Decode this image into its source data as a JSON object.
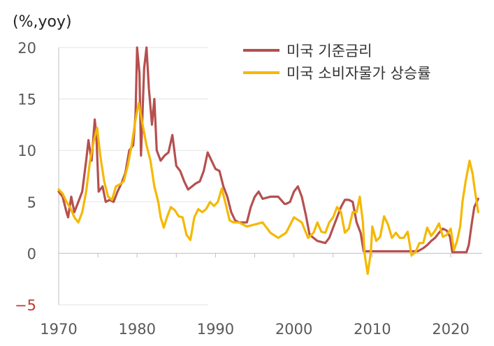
{
  "chart_data": {
    "type": "line",
    "unit_label": "(%,yoy)",
    "xlim": [
      1970,
      2024
    ],
    "ylim": [
      -5,
      20
    ],
    "y_ticks": [
      20,
      15,
      10,
      5,
      0,
      -5
    ],
    "y_tick_labels": [
      "20",
      "15",
      "10",
      "5",
      "0",
      "−5"
    ],
    "x_ticks": [
      1970,
      1980,
      1990,
      2000,
      2010,
      2020
    ],
    "x_tick_labels": [
      "1970",
      "1980",
      "1990",
      "2000",
      "2010",
      "2020"
    ],
    "grid": true,
    "legend": "top-right",
    "series": [
      {
        "name": "미국 기준금리",
        "color": "#b5504f",
        "points": [
          [
            1970.0,
            6.0
          ],
          [
            1970.5,
            5.5
          ],
          [
            1971.0,
            4.0
          ],
          [
            1971.2,
            3.5
          ],
          [
            1971.6,
            5.5
          ],
          [
            1972.0,
            4.0
          ],
          [
            1972.5,
            5.0
          ],
          [
            1973.0,
            6.0
          ],
          [
            1973.5,
            9.0
          ],
          [
            1973.8,
            11.0
          ],
          [
            1974.2,
            9.0
          ],
          [
            1974.6,
            13.0
          ],
          [
            1974.8,
            11.5
          ],
          [
            1975.1,
            6.0
          ],
          [
            1975.6,
            6.5
          ],
          [
            1976.0,
            5.0
          ],
          [
            1976.5,
            5.2
          ],
          [
            1977.0,
            5.0
          ],
          [
            1977.5,
            6.0
          ],
          [
            1978.0,
            6.8
          ],
          [
            1978.5,
            7.8
          ],
          [
            1979.0,
            10.0
          ],
          [
            1979.5,
            10.5
          ],
          [
            1979.8,
            13.5
          ],
          [
            1980.0,
            20.0
          ],
          [
            1980.3,
            17.5
          ],
          [
            1980.5,
            9.5
          ],
          [
            1980.9,
            18.0
          ],
          [
            1981.2,
            20.0
          ],
          [
            1981.5,
            16.0
          ],
          [
            1981.9,
            12.5
          ],
          [
            1982.2,
            15.0
          ],
          [
            1982.5,
            10.0
          ],
          [
            1983.0,
            9.0
          ],
          [
            1983.5,
            9.5
          ],
          [
            1984.0,
            9.8
          ],
          [
            1984.5,
            11.5
          ],
          [
            1985.0,
            8.5
          ],
          [
            1985.5,
            8.0
          ],
          [
            1986.0,
            7.0
          ],
          [
            1986.5,
            6.2
          ],
          [
            1987.0,
            6.5
          ],
          [
            1987.5,
            6.8
          ],
          [
            1988.0,
            7.0
          ],
          [
            1988.5,
            8.0
          ],
          [
            1989.0,
            9.8
          ],
          [
            1989.5,
            9.0
          ],
          [
            1990.0,
            8.2
          ],
          [
            1990.5,
            8.0
          ],
          [
            1991.0,
            6.5
          ],
          [
            1991.5,
            5.5
          ],
          [
            1992.0,
            4.0
          ],
          [
            1992.5,
            3.2
          ],
          [
            1993.0,
            3.0
          ],
          [
            1994.0,
            3.0
          ],
          [
            1994.5,
            4.5
          ],
          [
            1995.0,
            5.5
          ],
          [
            1995.5,
            6.0
          ],
          [
            1996.0,
            5.3
          ],
          [
            1997.0,
            5.5
          ],
          [
            1998.0,
            5.5
          ],
          [
            1998.8,
            4.8
          ],
          [
            1999.0,
            4.8
          ],
          [
            1999.5,
            5.0
          ],
          [
            2000.0,
            6.0
          ],
          [
            2000.5,
            6.5
          ],
          [
            2001.0,
            5.5
          ],
          [
            2001.5,
            3.8
          ],
          [
            2002.0,
            1.8
          ],
          [
            2003.0,
            1.2
          ],
          [
            2004.0,
            1.0
          ],
          [
            2004.5,
            1.5
          ],
          [
            2005.0,
            2.5
          ],
          [
            2005.5,
            3.5
          ],
          [
            2006.0,
            4.5
          ],
          [
            2006.5,
            5.2
          ],
          [
            2007.0,
            5.2
          ],
          [
            2007.5,
            5.0
          ],
          [
            2008.0,
            3.0
          ],
          [
            2008.5,
            2.0
          ],
          [
            2008.9,
            0.2
          ],
          [
            2015.8,
            0.2
          ],
          [
            2016.5,
            0.5
          ],
          [
            2017.0,
            0.8
          ],
          [
            2017.5,
            1.2
          ],
          [
            2018.0,
            1.5
          ],
          [
            2018.5,
            2.0
          ],
          [
            2019.0,
            2.4
          ],
          [
            2019.5,
            2.2
          ],
          [
            2019.9,
            1.6
          ],
          [
            2020.2,
            0.1
          ],
          [
            2022.0,
            0.1
          ],
          [
            2022.3,
            0.8
          ],
          [
            2022.7,
            3.0
          ],
          [
            2023.0,
            4.5
          ],
          [
            2023.5,
            5.3
          ]
        ]
      },
      {
        "name": "미국 소비자물가 상승률",
        "color": "#f5b800",
        "points": [
          [
            1970.0,
            6.2
          ],
          [
            1970.5,
            5.8
          ],
          [
            1971.0,
            5.0
          ],
          [
            1971.5,
            4.4
          ],
          [
            1972.0,
            3.5
          ],
          [
            1972.5,
            3.0
          ],
          [
            1973.0,
            4.0
          ],
          [
            1973.5,
            6.0
          ],
          [
            1974.0,
            9.0
          ],
          [
            1974.5,
            11.0
          ],
          [
            1974.9,
            12.2
          ],
          [
            1975.3,
            9.5
          ],
          [
            1975.8,
            7.0
          ],
          [
            1976.3,
            5.5
          ],
          [
            1976.8,
            5.2
          ],
          [
            1977.3,
            6.5
          ],
          [
            1977.8,
            6.7
          ],
          [
            1978.3,
            7.0
          ],
          [
            1978.8,
            8.5
          ],
          [
            1979.3,
            10.5
          ],
          [
            1979.8,
            13.0
          ],
          [
            1980.2,
            14.6
          ],
          [
            1980.7,
            12.5
          ],
          [
            1981.2,
            10.5
          ],
          [
            1981.7,
            9.0
          ],
          [
            1982.2,
            6.5
          ],
          [
            1982.7,
            5.0
          ],
          [
            1983.0,
            3.5
          ],
          [
            1983.4,
            2.5
          ],
          [
            1983.8,
            3.5
          ],
          [
            1984.3,
            4.5
          ],
          [
            1984.8,
            4.2
          ],
          [
            1985.3,
            3.6
          ],
          [
            1985.8,
            3.5
          ],
          [
            1986.3,
            1.8
          ],
          [
            1986.8,
            1.3
          ],
          [
            1987.3,
            3.5
          ],
          [
            1987.8,
            4.3
          ],
          [
            1988.3,
            4.0
          ],
          [
            1988.8,
            4.3
          ],
          [
            1989.3,
            5.0
          ],
          [
            1989.8,
            4.6
          ],
          [
            1990.3,
            5.0
          ],
          [
            1990.8,
            6.3
          ],
          [
            1991.3,
            4.8
          ],
          [
            1991.8,
            3.2
          ],
          [
            1992.3,
            3.0
          ],
          [
            1993.0,
            3.0
          ],
          [
            1994.0,
            2.6
          ],
          [
            1995.0,
            2.8
          ],
          [
            1996.0,
            3.0
          ],
          [
            1997.0,
            2.0
          ],
          [
            1998.0,
            1.5
          ],
          [
            1999.0,
            2.0
          ],
          [
            2000.0,
            3.5
          ],
          [
            2001.0,
            3.0
          ],
          [
            2001.8,
            1.5
          ],
          [
            2002.5,
            2.0
          ],
          [
            2003.0,
            3.0
          ],
          [
            2003.5,
            2.1
          ],
          [
            2004.0,
            2.0
          ],
          [
            2004.5,
            3.0
          ],
          [
            2005.0,
            3.5
          ],
          [
            2005.5,
            4.5
          ],
          [
            2006.0,
            4.0
          ],
          [
            2006.5,
            2.0
          ],
          [
            2007.0,
            2.4
          ],
          [
            2007.5,
            4.0
          ],
          [
            2008.0,
            4.0
          ],
          [
            2008.4,
            5.5
          ],
          [
            2008.8,
            3.0
          ],
          [
            2009.0,
            0.0
          ],
          [
            2009.4,
            -2.0
          ],
          [
            2009.8,
            0.0
          ],
          [
            2010.0,
            2.6
          ],
          [
            2010.5,
            1.2
          ],
          [
            2011.0,
            1.6
          ],
          [
            2011.5,
            3.6
          ],
          [
            2012.0,
            2.8
          ],
          [
            2012.5,
            1.5
          ],
          [
            2013.0,
            2.0
          ],
          [
            2013.5,
            1.5
          ],
          [
            2014.0,
            1.5
          ],
          [
            2014.5,
            2.1
          ],
          [
            2015.0,
            -0.2
          ],
          [
            2015.5,
            0.1
          ],
          [
            2016.0,
            1.0
          ],
          [
            2016.5,
            1.0
          ],
          [
            2017.0,
            2.5
          ],
          [
            2017.5,
            1.7
          ],
          [
            2018.0,
            2.2
          ],
          [
            2018.5,
            2.9
          ],
          [
            2019.0,
            1.6
          ],
          [
            2019.5,
            1.8
          ],
          [
            2020.0,
            2.4
          ],
          [
            2020.4,
            0.3
          ],
          [
            2020.8,
            1.2
          ],
          [
            2021.2,
            2.6
          ],
          [
            2021.5,
            5.0
          ],
          [
            2021.9,
            7.0
          ],
          [
            2022.4,
            9.0
          ],
          [
            2022.8,
            7.7
          ],
          [
            2023.0,
            6.5
          ],
          [
            2023.5,
            4.0
          ]
        ]
      }
    ]
  }
}
